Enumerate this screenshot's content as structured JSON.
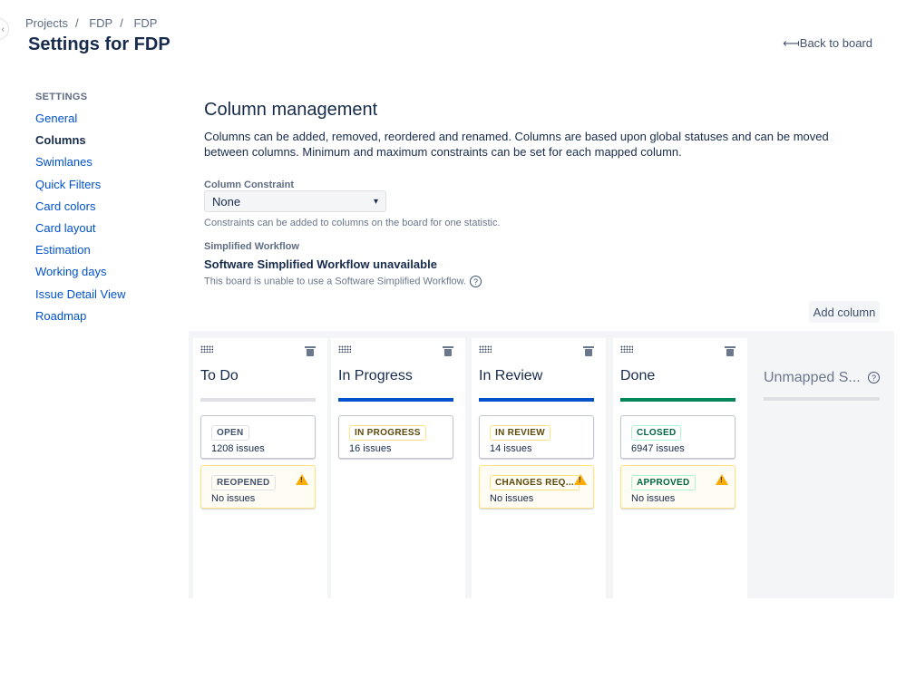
{
  "breadcrumbs": [
    "Projects",
    "FDP",
    "FDP"
  ],
  "title": "Settings for FDP",
  "back_label": "Back to board",
  "sidebar": {
    "heading": "SETTINGS",
    "items": [
      {
        "label": "General"
      },
      {
        "label": "Columns",
        "active": true
      },
      {
        "label": "Swimlanes"
      },
      {
        "label": "Quick Filters"
      },
      {
        "label": "Card colors"
      },
      {
        "label": "Card layout"
      },
      {
        "label": "Estimation"
      },
      {
        "label": "Working days"
      },
      {
        "label": "Issue Detail View"
      },
      {
        "label": "Roadmap"
      }
    ]
  },
  "main": {
    "heading": "Column management",
    "description": "Columns can be added, removed, reordered and renamed. Columns are based upon global statuses and can be moved between columns. Minimum and maximum constraints can be set for each mapped column.",
    "constraint_label": "Column Constraint",
    "constraint_value": "None",
    "constraint_help": "Constraints can be added to columns on the board for one statistic.",
    "workflow_label": "Simplified Workflow",
    "workflow_title": "Software Simplified Workflow unavailable",
    "workflow_help": "This board is unable to use a Software Simplified Workflow.",
    "add_column": "Add column"
  },
  "columns": [
    {
      "name": "To Do",
      "bar_color": "#dfe1e6",
      "statuses": [
        {
          "label": "OPEN",
          "count": "1208 issues",
          "color": "grey"
        },
        {
          "label": "REOPENED",
          "count": "No issues",
          "color": "grey",
          "warning": true
        }
      ]
    },
    {
      "name": "In Progress",
      "bar_color": "#0052cc",
      "statuses": [
        {
          "label": "IN PROGRESS",
          "count": "16 issues",
          "color": "yellow"
        }
      ]
    },
    {
      "name": "In Review",
      "bar_color": "#0052cc",
      "statuses": [
        {
          "label": "IN REVIEW",
          "count": "14 issues",
          "color": "yellow"
        },
        {
          "label": "CHANGES REQ...",
          "count": "No issues",
          "color": "yellow",
          "warning": true
        }
      ]
    },
    {
      "name": "Done",
      "bar_color": "#00875a",
      "statuses": [
        {
          "label": "CLOSED",
          "count": "6947 issues",
          "color": "green"
        },
        {
          "label": "APPROVED",
          "count": "No issues",
          "color": "green",
          "warning": true
        }
      ]
    }
  ],
  "unmapped": {
    "name": "Unmapped S..."
  }
}
